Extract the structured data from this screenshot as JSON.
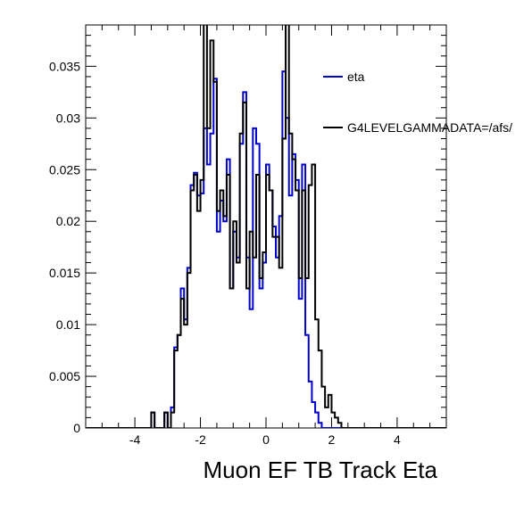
{
  "chart_data": {
    "type": "histogram",
    "title": "",
    "xlabel": "Muon EF TB Track Eta",
    "ylabel": "",
    "xlim": [
      -5.5,
      5.5
    ],
    "ylim": [
      0,
      0.039
    ],
    "x_ticks": [
      "-4",
      "-2",
      "0",
      "2",
      "4"
    ],
    "y_ticks": [
      "0",
      "0.005",
      "0.01",
      "0.015",
      "0.02",
      "0.025",
      "0.03",
      "0.035"
    ],
    "bin_edges_start": -3.5,
    "bin_width": 0.1,
    "grid": false,
    "legend_position": "top-right",
    "series": [
      {
        "name": "eta",
        "color": "#0000cc",
        "values": [
          0.0015,
          0,
          0,
          0,
          0.0015,
          0,
          0.002,
          0.0078,
          0.009,
          0.0135,
          0.0105,
          0.0155,
          0.0235,
          0.0247,
          0.0225,
          0.0227,
          0.029,
          0.0255,
          0.0285,
          0.0338,
          0.019,
          0.022,
          0.02,
          0.026,
          0.0135,
          0.019,
          0.0165,
          0.0275,
          0.0325,
          0.0165,
          0.0115,
          0.029,
          0.0275,
          0.0135,
          0.016,
          0.0255,
          0.023,
          0.0195,
          0.0165,
          0.0205,
          0.0345,
          0.03,
          0.0225,
          0.0265,
          0.024,
          0.0125,
          0.0255,
          0.009,
          0.0045,
          0.0025,
          0.0015,
          0.0005,
          0,
          0,
          0,
          0,
          0,
          0,
          0,
          0,
          0,
          0,
          0,
          0,
          0
        ]
      },
      {
        "name": "G4LEVELGAMMADATA=/afs/",
        "color": "#000000",
        "values": [
          0.0015,
          0,
          0,
          0,
          0.0015,
          0,
          0.0015,
          0.0075,
          0.009,
          0.0125,
          0.01,
          0.015,
          0.023,
          0.0245,
          0.021,
          0.024,
          0.0395,
          0.029,
          0.0375,
          0.0335,
          0.021,
          0.023,
          0.0205,
          0.0245,
          0.0135,
          0.02,
          0.016,
          0.0285,
          0.0315,
          0.0135,
          0.019,
          0.0165,
          0.0245,
          0.0145,
          0.017,
          0.0245,
          0.023,
          0.0185,
          0.0185,
          0.0155,
          0.028,
          0.0395,
          0.0285,
          0.026,
          0.023,
          0.0145,
          0.023,
          0.0145,
          0.0235,
          0.0255,
          0.0105,
          0.0075,
          0.004,
          0.002,
          0.0032,
          0.0015,
          0.001,
          0.0005,
          0,
          0,
          0,
          0,
          0,
          0,
          0
        ]
      }
    ]
  }
}
